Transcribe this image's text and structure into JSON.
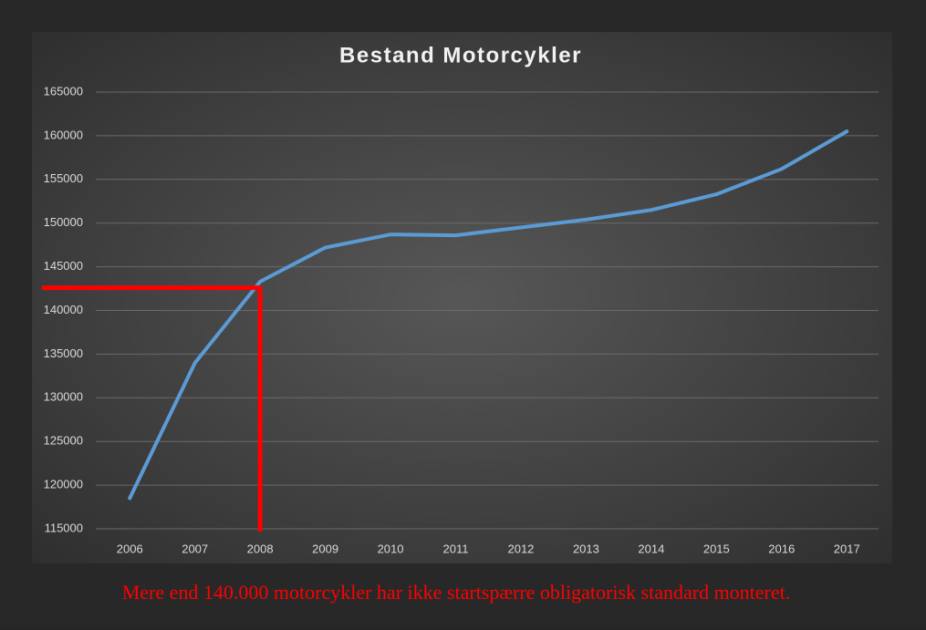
{
  "chart_data": {
    "type": "line",
    "title": "Bestand Motorcykler",
    "categories": [
      "2006",
      "2007",
      "2008",
      "2009",
      "2010",
      "2011",
      "2012",
      "2013",
      "2014",
      "2015",
      "2016",
      "2017"
    ],
    "series": [
      {
        "name": "Bestand",
        "color": "#5b9bd5",
        "values": [
          118500,
          134000,
          143300,
          147200,
          148700,
          148600,
          149500,
          150400,
          151500,
          153300,
          156200,
          160500
        ]
      }
    ],
    "ylim": [
      115000,
      165000
    ],
    "yticks": [
      115000,
      120000,
      125000,
      130000,
      135000,
      140000,
      145000,
      150000,
      155000,
      160000,
      165000
    ],
    "grid": true,
    "reference": {
      "x": "2008",
      "y": 142600,
      "color": "#ff0000"
    },
    "caption": "Mere end 140.000 motorcykler har ikke startspærre obligatorisk standard monteret."
  }
}
